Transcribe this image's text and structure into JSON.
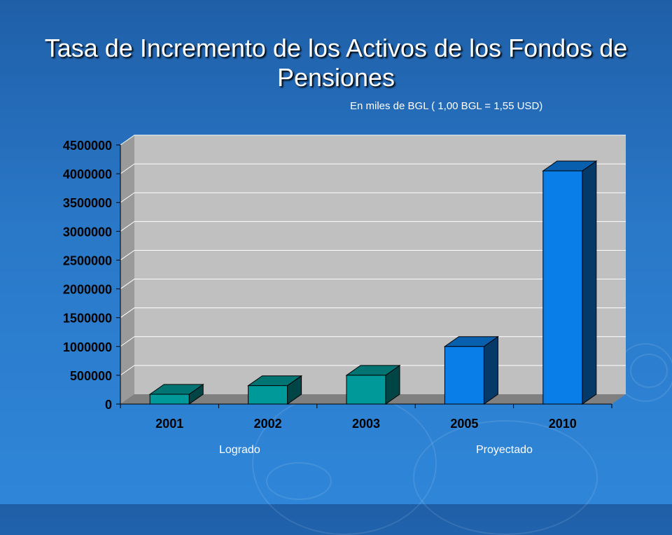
{
  "title": "Tasa de Incremento de los Activos de los Fondos de Pensiones",
  "subtitle": "En miles de BGL ( 1,00 BGL = 1,55 USD)",
  "labels": {
    "achieved": "Logrado",
    "projected": "Proyectado"
  },
  "colors": {
    "achieved": "#009999",
    "projected": "#0a7ee8",
    "plot_bg": "#c0c0c0",
    "floor": "#808080",
    "grid": "#ffffff",
    "background": "#2a78c8"
  },
  "chart_data": {
    "type": "bar",
    "title": "Tasa de Incremento de los Activos de los Fondos de Pensiones",
    "categories": [
      "2001",
      "2002",
      "2003",
      "2005",
      "2010"
    ],
    "values": [
      170000,
      320000,
      500000,
      1000000,
      4050000
    ],
    "bar_groups": [
      "achieved",
      "achieved",
      "achieved",
      "projected",
      "projected"
    ],
    "ylim": [
      0,
      4500000
    ],
    "yticks": [
      0,
      500000,
      1000000,
      1500000,
      2000000,
      2500000,
      3000000,
      3500000,
      4000000,
      4500000
    ],
    "grid": true,
    "style": "3d",
    "xlabel": "",
    "ylabel": ""
  }
}
